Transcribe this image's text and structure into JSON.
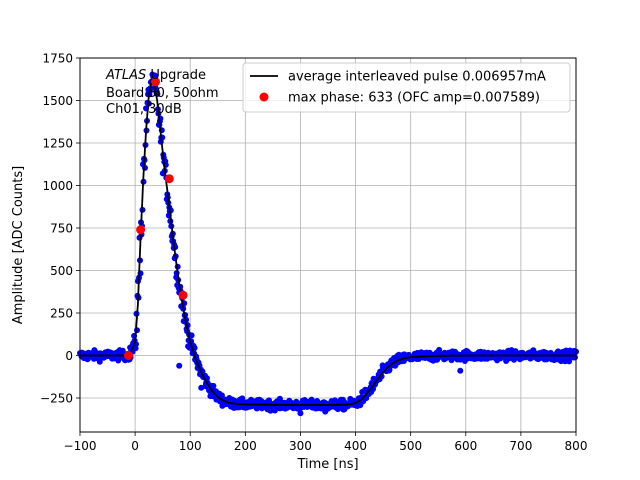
{
  "chart_data": {
    "type": "line",
    "xlabel": "Time [ns]",
    "ylabel": "Amplitude [ADC Counts]",
    "xlim": [
      -100,
      800
    ],
    "ylim": [
      -450,
      1750
    ],
    "x_ticks": [
      -100,
      0,
      100,
      200,
      300,
      400,
      500,
      600,
      700,
      800
    ],
    "x_tick_labels": [
      "−100",
      "0",
      "100",
      "200",
      "300",
      "400",
      "500",
      "600",
      "700",
      "800"
    ],
    "y_ticks": [
      -250,
      0,
      250,
      500,
      750,
      1000,
      1250,
      1500,
      1750
    ],
    "y_tick_labels": [
      "−250",
      "0",
      "250",
      "500",
      "750",
      "1000",
      "1250",
      "1500",
      "1750"
    ],
    "grid": true,
    "legend_position": "top-right",
    "annotation": {
      "atlas": "ATLAS",
      "upgrade": " Upgrade",
      "line2": "Board 50, 50ohm",
      "line3": "Ch01, 30dB"
    },
    "series": [
      {
        "name": "average interleaved pulse 0.006957mA",
        "kind": "line",
        "color": "#000000",
        "x": [
          -100,
          -20,
          -10,
          0,
          5,
          10,
          15,
          20,
          25,
          30,
          35,
          40,
          45,
          50,
          55,
          60,
          65,
          70,
          75,
          80,
          85,
          90,
          95,
          100,
          110,
          120,
          130,
          140,
          150,
          160,
          170,
          180,
          190,
          200,
          250,
          300,
          350,
          380,
          390,
          400,
          410,
          420,
          430,
          440,
          450,
          460,
          470,
          480,
          490,
          500,
          525,
          550,
          600,
          700,
          800
        ],
        "y": [
          0,
          0,
          0,
          80,
          300,
          700,
          1050,
          1330,
          1530,
          1620,
          1600,
          1500,
          1350,
          1200,
          1060,
          930,
          800,
          660,
          540,
          420,
          320,
          230,
          150,
          80,
          -20,
          -100,
          -160,
          -210,
          -245,
          -265,
          -278,
          -283,
          -286,
          -288,
          -290,
          -291,
          -291,
          -290,
          -287,
          -280,
          -260,
          -225,
          -185,
          -140,
          -100,
          -65,
          -40,
          -25,
          -15,
          -10,
          -5,
          -2,
          0,
          0,
          0
        ]
      },
      {
        "name": "",
        "kind": "scatter",
        "color": "#0000ff",
        "description_values": "noisy samples following the average pulse with ~25 ADC spread"
      },
      {
        "name": "max phase: 633 (OFC amp=0.007589)",
        "kind": "scatter",
        "color": "#ff0000",
        "x": [
          -12,
          10,
          37,
          62,
          87
        ],
        "y": [
          0,
          740,
          1610,
          1040,
          355
        ]
      }
    ]
  }
}
